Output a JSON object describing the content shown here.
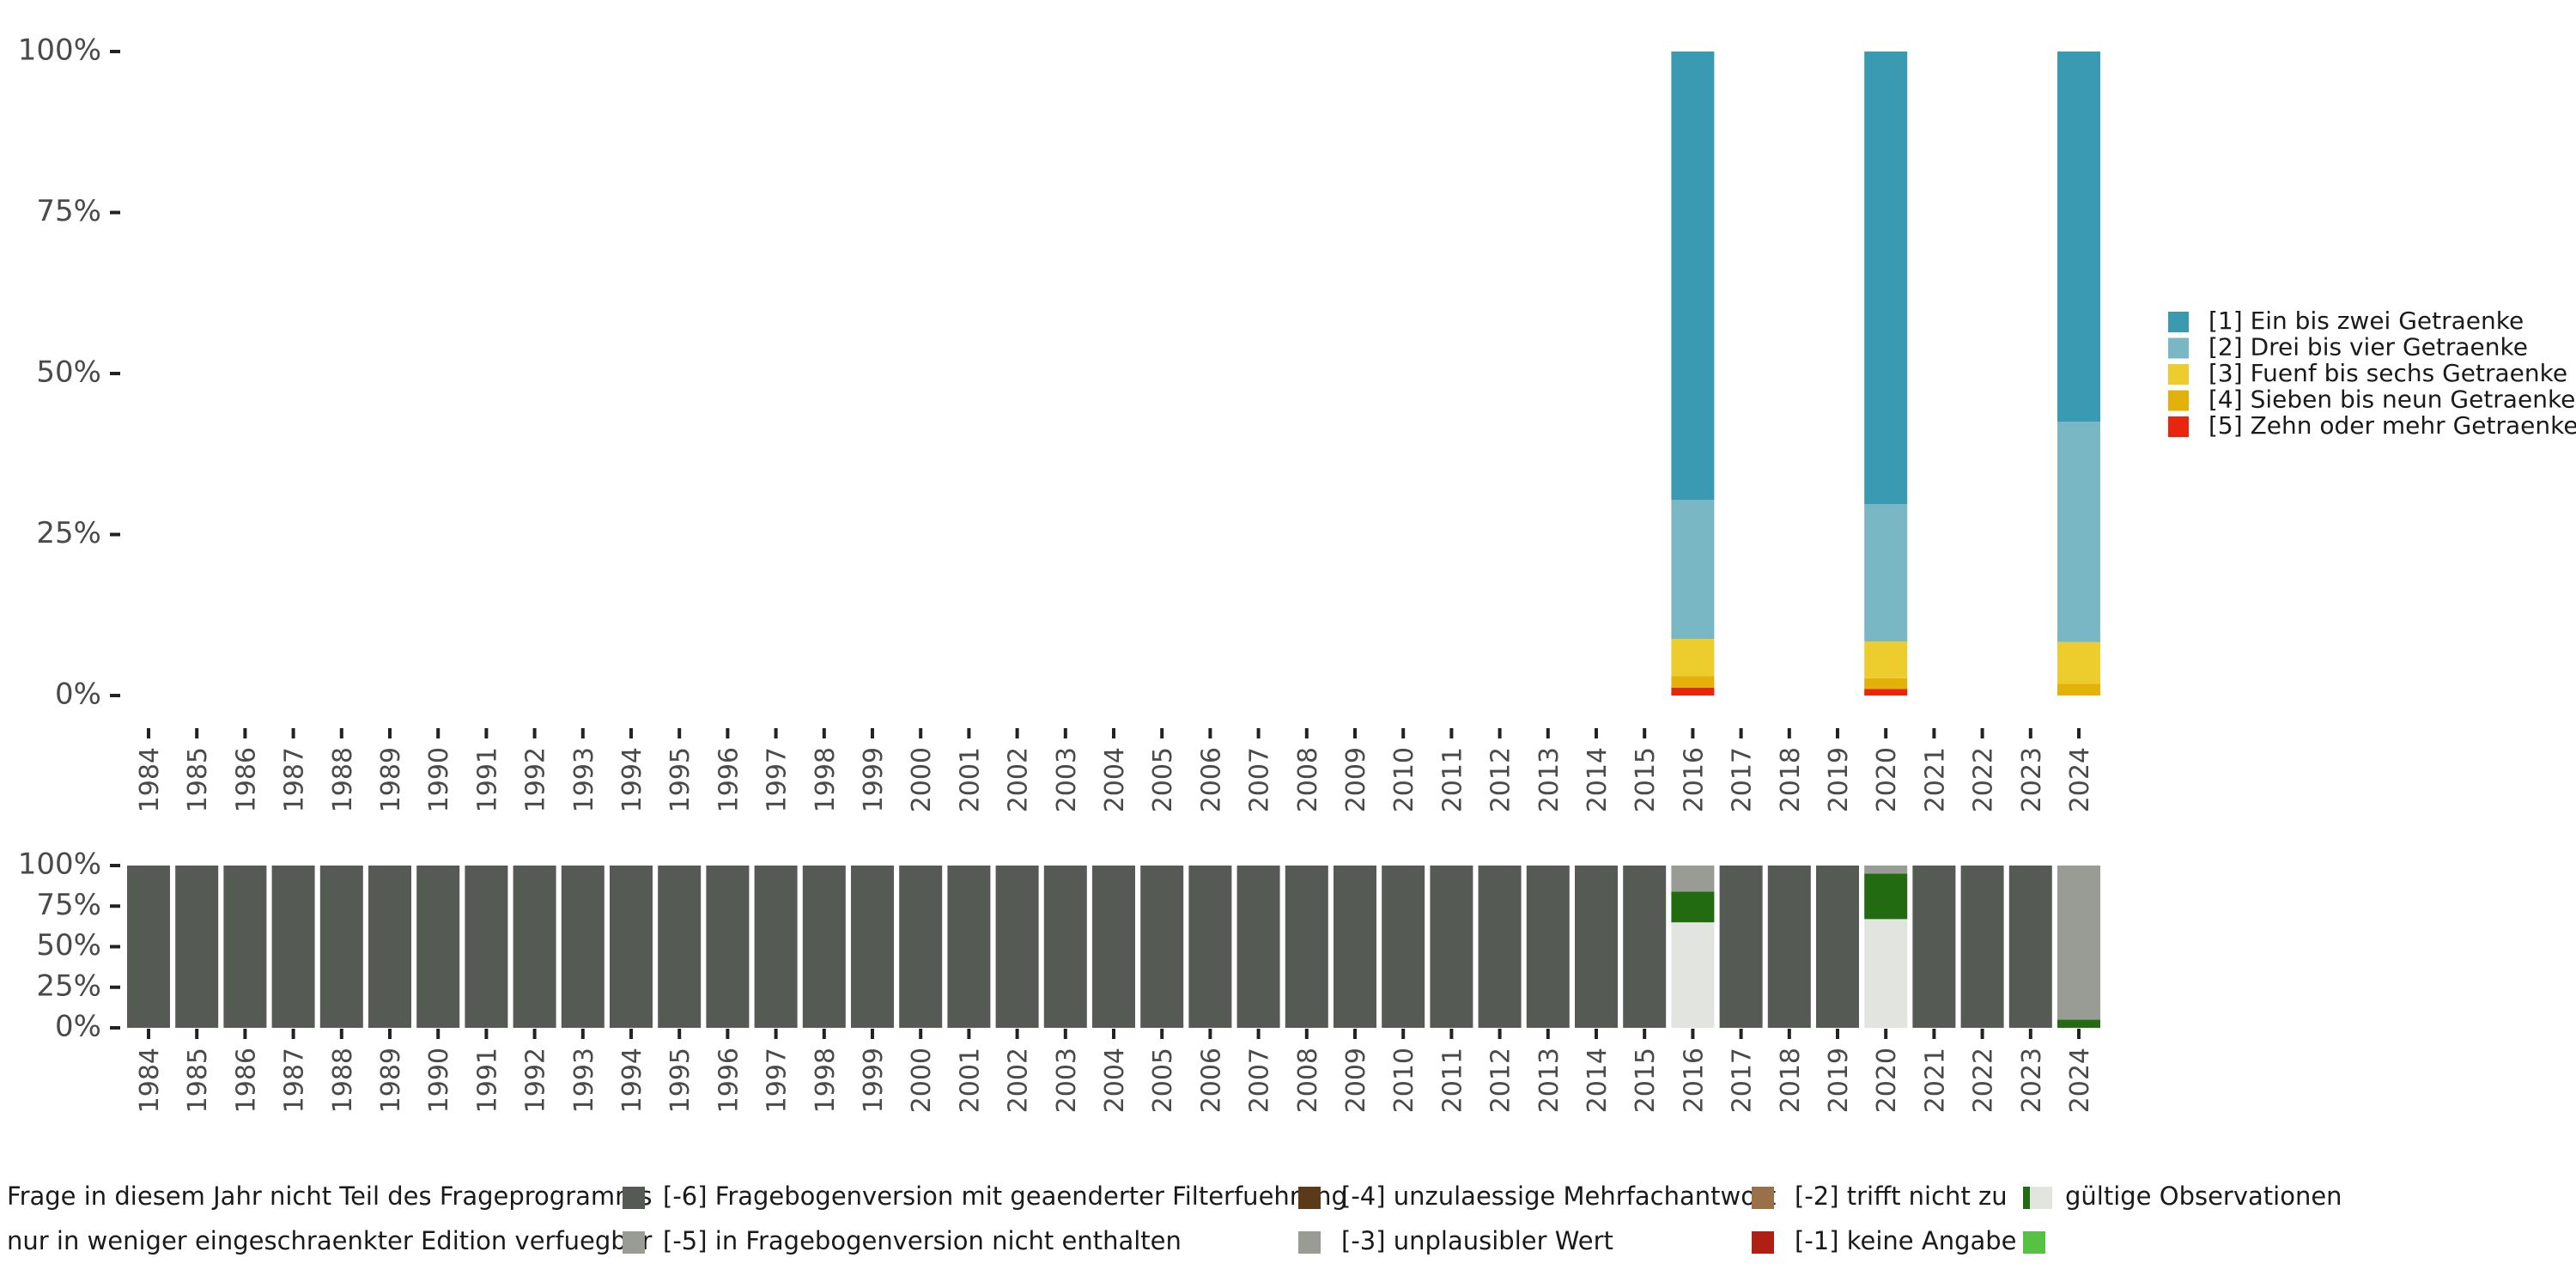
{
  "chart_data": [
    {
      "type": "bar",
      "stacked": true,
      "categories": [
        "1984",
        "1985",
        "1986",
        "1987",
        "1988",
        "1989",
        "1990",
        "1991",
        "1992",
        "1993",
        "1994",
        "1995",
        "1996",
        "1997",
        "1998",
        "1999",
        "2000",
        "2001",
        "2002",
        "2003",
        "2004",
        "2005",
        "2006",
        "2007",
        "2008",
        "2009",
        "2010",
        "2011",
        "2012",
        "2013",
        "2014",
        "2015",
        "2016",
        "2017",
        "2018",
        "2019",
        "2020",
        "2021",
        "2022",
        "2023",
        "2024"
      ],
      "y_ticks": [
        "0%",
        "25%",
        "50%",
        "75%",
        "100%"
      ],
      "ylim": [
        0,
        100
      ],
      "grid": false,
      "legend_position": "right",
      "series": [
        {
          "name": "[5] Zehn oder mehr Getraenke",
          "color": "#e8250e",
          "values": {
            "2016": 1.2,
            "2020": 1.0,
            "2024": 0.0
          }
        },
        {
          "name": "[4] Sieben bis neun Getraenke",
          "color": "#e2b10a",
          "values": {
            "2016": 1.8,
            "2020": 1.7,
            "2024": 1.8
          }
        },
        {
          "name": "[3] Fuenf bis sechs Getraenke",
          "color": "#edcd2e",
          "values": {
            "2016": 5.8,
            "2020": 5.7,
            "2024": 6.5
          }
        },
        {
          "name": "[2] Drei bis vier Getraenke",
          "color": "#7ab7c5",
          "values": {
            "2016": 21.6,
            "2020": 21.3,
            "2024": 34.2
          }
        },
        {
          "name": "[1] Ein bis zwei Getraenke",
          "color": "#3a9ab2",
          "values": {
            "2016": 69.6,
            "2020": 70.3,
            "2024": 57.5
          }
        }
      ]
    },
    {
      "type": "bar",
      "stacked": true,
      "categories": [
        "1984",
        "1985",
        "1986",
        "1987",
        "1988",
        "1989",
        "1990",
        "1991",
        "1992",
        "1993",
        "1994",
        "1995",
        "1996",
        "1997",
        "1998",
        "1999",
        "2000",
        "2001",
        "2002",
        "2003",
        "2004",
        "2005",
        "2006",
        "2007",
        "2008",
        "2009",
        "2010",
        "2011",
        "2012",
        "2013",
        "2014",
        "2015",
        "2016",
        "2017",
        "2018",
        "2019",
        "2020",
        "2021",
        "2022",
        "2023",
        "2024"
      ],
      "y_ticks": [
        "0%",
        "25%",
        "50%",
        "75%",
        "100%"
      ],
      "ylim": [
        0,
        100
      ],
      "grid": false,
      "legend_position": "bottom",
      "series": [
        {
          "name": "gültige Observationen",
          "color": "#e1e4df",
          "values": {
            "2016": 65,
            "2020": 67
          }
        },
        {
          "name": "[-2] trifft nicht zu",
          "color": "#236b10",
          "values": {
            "2016": 19,
            "2020": 28,
            "2024": 5
          }
        },
        {
          "name": "[-5] in Fragebogenversion nicht enthalten",
          "color": "#999b95",
          "values": {
            "2016": 16,
            "2020": 5,
            "2024": 95
          }
        },
        {
          "name": "Frage in diesem Jahr nicht Teil des Frageprogramms",
          "color": "#555a55",
          "values": {
            "1984": 100,
            "1985": 100,
            "1986": 100,
            "1987": 100,
            "1988": 100,
            "1989": 100,
            "1990": 100,
            "1991": 100,
            "1992": 100,
            "1993": 100,
            "1994": 100,
            "1995": 100,
            "1996": 100,
            "1997": 100,
            "1998": 100,
            "1999": 100,
            "2000": 100,
            "2001": 100,
            "2002": 100,
            "2003": 100,
            "2004": 100,
            "2005": 100,
            "2006": 100,
            "2007": 100,
            "2008": 100,
            "2009": 100,
            "2010": 100,
            "2011": 100,
            "2012": 100,
            "2013": 100,
            "2014": 100,
            "2015": 100,
            "2017": 100,
            "2018": 100,
            "2019": 100,
            "2021": 100,
            "2022": 100,
            "2023": 100
          }
        }
      ],
      "legend": [
        {
          "label": "Frage in diesem Jahr nicht Teil des Frageprogramms",
          "color": "#555a55"
        },
        {
          "label": "nur in weniger eingeschraenkter Edition verfuegbar",
          "color": "#999b95"
        },
        {
          "label": "[-6] Fragebogenversion mit geaenderter Filterfuehrung",
          "color": "#5a3a18"
        },
        {
          "label": "[-5] in Fragebogenversion nicht enthalten",
          "color": "#999b95"
        },
        {
          "label": "[-4] unzulaessige Mehrfachantwort",
          "color": "#9a7048"
        },
        {
          "label": "[-3] unplausibler Wert",
          "color": "#b01f14"
        },
        {
          "label": "[-2] trifft nicht zu",
          "color": "#236b10"
        },
        {
          "label": "[-1] keine Angabe",
          "color": "#56c142"
        },
        {
          "label": "gültige Observationen",
          "color": "#e1e4df"
        }
      ]
    }
  ]
}
